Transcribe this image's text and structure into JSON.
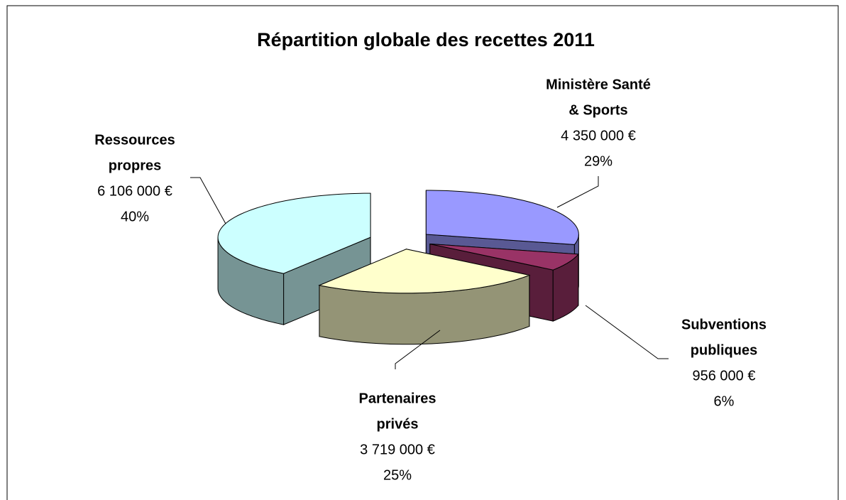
{
  "chart_data": {
    "type": "pie3d",
    "title": "Répartition globale des recettes  2011",
    "categories": [
      [
        "Ministère Santé",
        "& Sports"
      ],
      [
        "Subventions",
        "publiques"
      ],
      [
        "Partenaires",
        "privés"
      ],
      [
        "Ressources",
        "propres"
      ]
    ],
    "values": [
      4350000,
      956000,
      3719000,
      6106000
    ],
    "value_labels": [
      "4 350 000 €",
      "956 000 €",
      "3 719 000 €",
      "6 106 000 €"
    ],
    "percent_labels": [
      "29%",
      "6%",
      "25%",
      "40%"
    ],
    "colors": [
      "#9999ff",
      "#993366",
      "#ffffcc",
      "#ccffff"
    ]
  }
}
